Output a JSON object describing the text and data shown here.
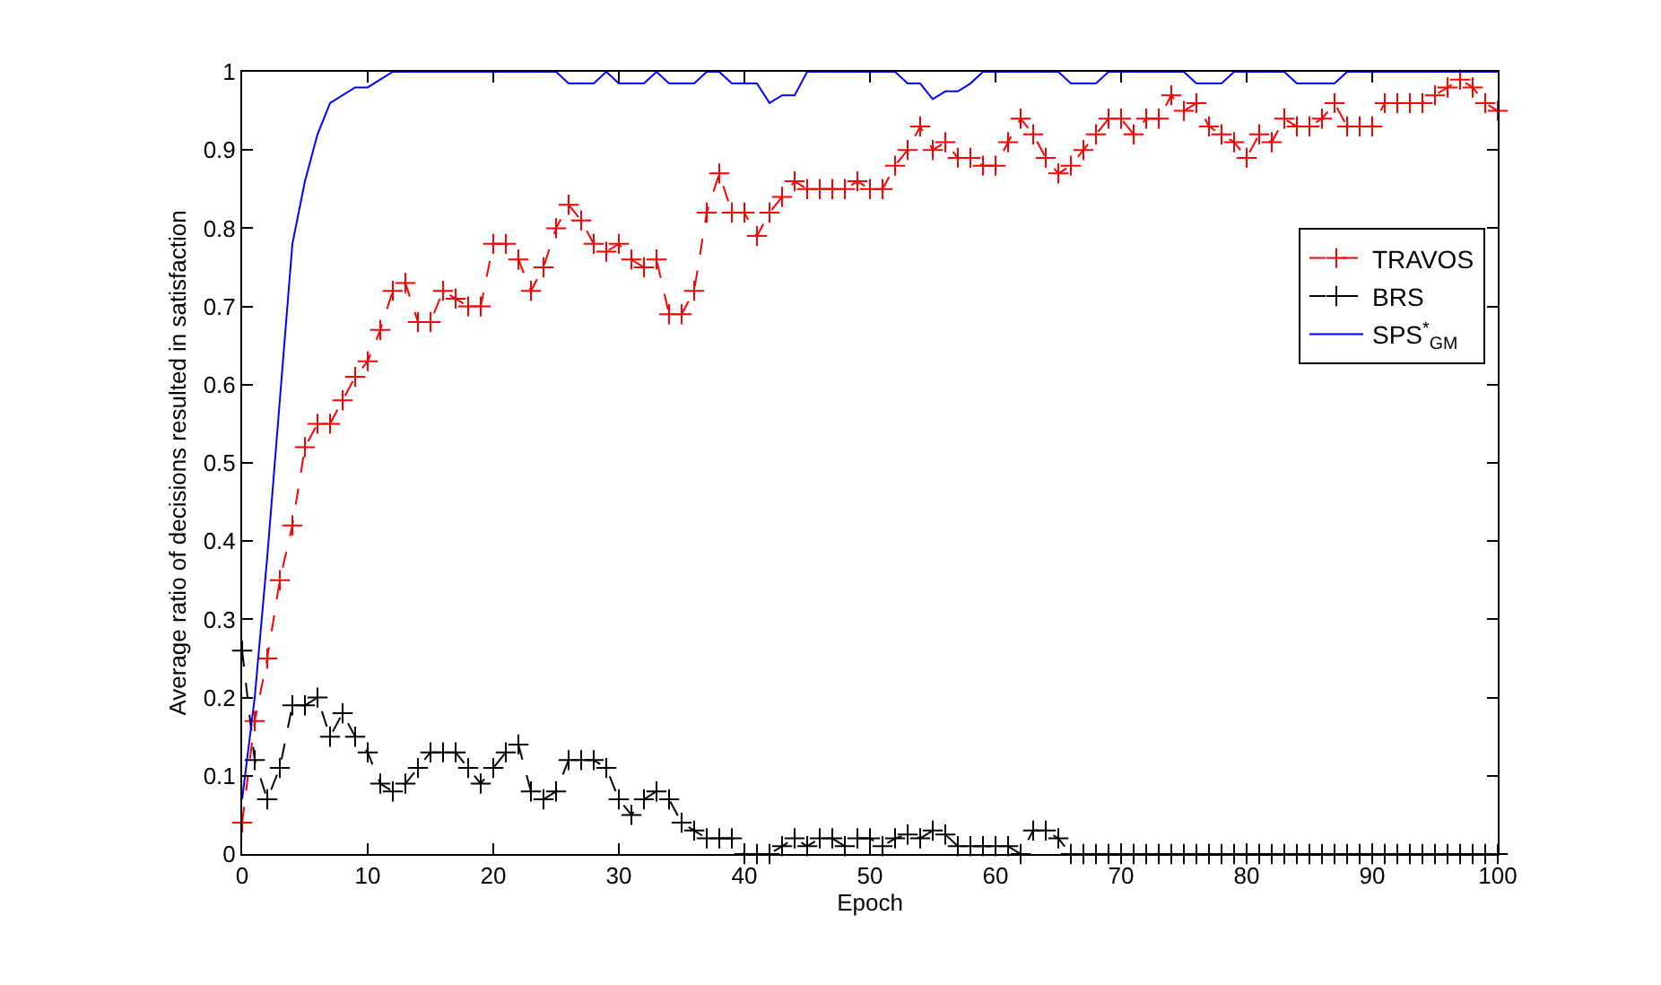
{
  "chart_data": {
    "type": "line",
    "xlabel": "Epoch",
    "ylabel": "Average ratio of decisions resulted in satisfaction",
    "x": [
      0,
      1,
      2,
      3,
      4,
      5,
      6,
      7,
      8,
      9,
      10,
      11,
      12,
      13,
      14,
      15,
      16,
      17,
      18,
      19,
      20,
      21,
      22,
      23,
      24,
      25,
      26,
      27,
      28,
      29,
      30,
      31,
      32,
      33,
      34,
      35,
      36,
      37,
      38,
      39,
      40,
      41,
      42,
      43,
      44,
      45,
      46,
      47,
      48,
      49,
      50,
      51,
      52,
      53,
      54,
      55,
      56,
      57,
      58,
      59,
      60,
      61,
      62,
      63,
      64,
      65,
      66,
      67,
      68,
      69,
      70,
      71,
      72,
      73,
      74,
      75,
      76,
      77,
      78,
      79,
      80,
      81,
      82,
      83,
      84,
      85,
      86,
      87,
      88,
      89,
      90,
      91,
      92,
      93,
      94,
      95,
      96,
      97,
      98,
      99,
      100
    ],
    "xlim": [
      0,
      100
    ],
    "xticks": [
      0,
      10,
      20,
      30,
      40,
      50,
      60,
      70,
      80,
      90,
      100
    ],
    "ylim": [
      0,
      1
    ],
    "yticks": [
      0,
      0.1,
      0.2,
      0.3,
      0.4,
      0.5,
      0.6,
      0.7,
      0.8,
      0.9,
      1
    ],
    "legend": "top right",
    "series": [
      {
        "name": "TRAVOS",
        "color": "#ff0000",
        "marker": "cross",
        "line_style": "dashed",
        "values": [
          0.04,
          0.17,
          0.25,
          0.35,
          0.42,
          0.52,
          0.55,
          0.55,
          0.58,
          0.61,
          0.63,
          0.67,
          0.72,
          0.73,
          0.68,
          0.68,
          0.72,
          0.71,
          0.7,
          0.7,
          0.78,
          0.78,
          0.76,
          0.72,
          0.75,
          0.8,
          0.83,
          0.81,
          0.78,
          0.77,
          0.78,
          0.76,
          0.75,
          0.76,
          0.69,
          0.69,
          0.72,
          0.82,
          0.87,
          0.82,
          0.82,
          0.79,
          0.82,
          0.84,
          0.86,
          0.85,
          0.85,
          0.85,
          0.85,
          0.86,
          0.85,
          0.85,
          0.88,
          0.9,
          0.93,
          0.9,
          0.91,
          0.89,
          0.89,
          0.88,
          0.88,
          0.91,
          0.94,
          0.92,
          0.89,
          0.87,
          0.88,
          0.9,
          0.92,
          0.94,
          0.94,
          0.92,
          0.94,
          0.94,
          0.97,
          0.95,
          0.96,
          0.93,
          0.92,
          0.91,
          0.89,
          0.92,
          0.91,
          0.94,
          0.93,
          0.93,
          0.94,
          0.96,
          0.93,
          0.93,
          0.93,
          0.96,
          0.96,
          0.96,
          0.96,
          0.97,
          0.98,
          0.99,
          0.98,
          0.96,
          0.95
        ]
      },
      {
        "name": "BRS",
        "color": "#000000",
        "marker": "cross",
        "line_style": "dashed",
        "values": [
          0.26,
          0.12,
          0.07,
          0.11,
          0.19,
          0.19,
          0.2,
          0.15,
          0.18,
          0.15,
          0.13,
          0.09,
          0.08,
          0.09,
          0.11,
          0.13,
          0.13,
          0.13,
          0.11,
          0.09,
          0.11,
          0.13,
          0.14,
          0.08,
          0.07,
          0.08,
          0.12,
          0.12,
          0.12,
          0.11,
          0.07,
          0.05,
          0.07,
          0.08,
          0.07,
          0.04,
          0.03,
          0.02,
          0.02,
          0.02,
          0,
          0,
          0,
          0.01,
          0.02,
          0.01,
          0.02,
          0.02,
          0.01,
          0.02,
          0.02,
          0.01,
          0.02,
          0.025,
          0.02,
          0.03,
          0.025,
          0.01,
          0.01,
          0.01,
          0.01,
          0.01,
          0,
          0.03,
          0.03,
          0.02,
          0,
          0,
          0,
          0,
          0,
          0,
          0,
          0,
          0,
          0,
          0,
          0,
          0,
          0,
          0,
          0,
          0,
          0,
          0,
          0,
          0,
          0,
          0,
          0,
          0,
          0,
          0,
          0,
          0,
          0,
          0,
          0,
          0,
          0,
          0
        ]
      },
      {
        "name": "SPS$^{*}$$_{GM}$",
        "color": "#0000ff",
        "marker": "none",
        "line_style": "solid",
        "values": [
          0.07,
          0.2,
          0.38,
          0.58,
          0.78,
          0.86,
          0.92,
          0.96,
          0.97,
          0.98,
          0.98,
          0.99,
          1,
          1,
          1,
          1,
          1,
          1,
          1,
          1,
          1,
          1,
          1,
          1,
          1,
          1,
          0.985,
          0.985,
          0.985,
          1,
          0.985,
          0.985,
          0.985,
          1,
          0.985,
          0.985,
          0.985,
          1,
          1,
          0.985,
          0.985,
          0.985,
          0.96,
          0.97,
          0.97,
          1,
          1,
          1,
          1,
          1,
          1,
          1,
          1,
          0.985,
          0.985,
          0.965,
          0.975,
          0.975,
          0.985,
          1,
          1,
          1,
          1,
          1,
          1,
          1,
          0.985,
          0.985,
          0.985,
          1,
          1,
          1,
          1,
          1,
          1,
          1,
          0.985,
          0.985,
          0.985,
          1,
          1,
          1,
          1,
          1,
          0.985,
          0.985,
          0.985,
          0.985,
          1,
          1,
          1,
          1,
          1,
          1,
          1,
          1,
          1,
          1,
          1,
          1,
          1
        ]
      }
    ]
  }
}
